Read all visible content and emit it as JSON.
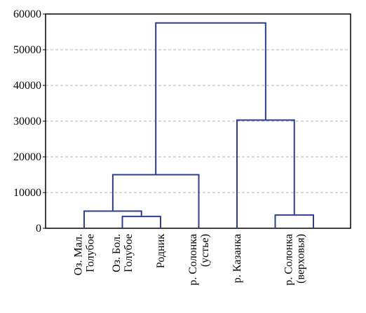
{
  "chart_data": {
    "type": "dendrogram",
    "leaves": [
      [
        "Оз. Мал.",
        "Голубое"
      ],
      [
        "Оз. Бол.",
        "Голубое"
      ],
      [
        "Родник"
      ],
      [
        "р. Солонка",
        "(устье)"
      ],
      [
        "р. Казанка"
      ],
      [
        "р. Солонка",
        "(верховья)"
      ],
      null
    ],
    "merges": [
      {
        "left": 1,
        "right": 2,
        "height": 3300
      },
      {
        "left": 5,
        "right": 6,
        "height": 3700
      },
      {
        "left": 0,
        "right": 7,
        "height": 4800
      },
      {
        "left": 9,
        "right": 3,
        "height": 15000
      },
      {
        "left": 4,
        "right": 8,
        "height": 30300
      },
      {
        "left": 10,
        "right": 11,
        "height": 57500
      }
    ],
    "color": "#2e3f8f",
    "ylim": [
      0,
      60000
    ],
    "yticks": [
      0,
      10000,
      20000,
      30000,
      40000,
      50000,
      60000
    ],
    "grid": true
  }
}
